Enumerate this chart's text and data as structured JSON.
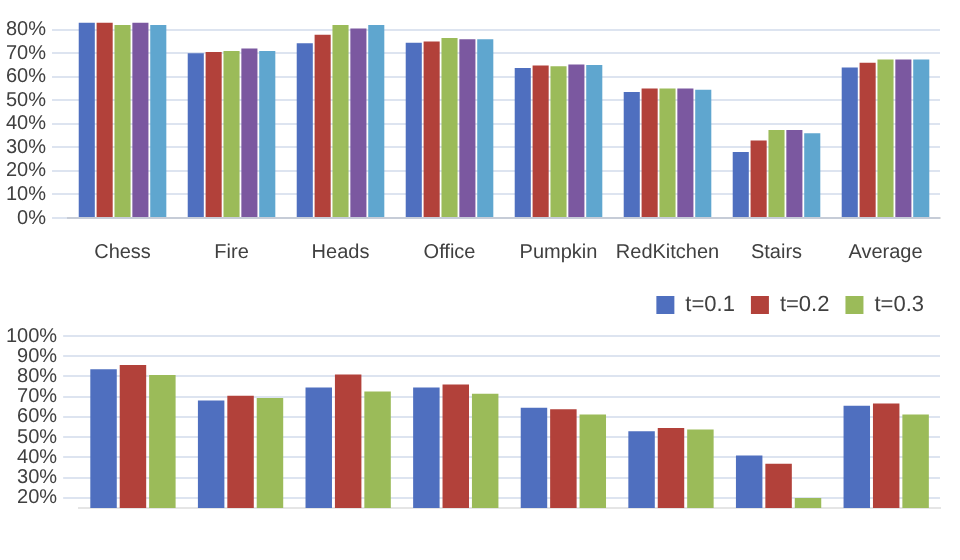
{
  "chart_data": [
    {
      "type": "bar",
      "categories": [
        "Chess",
        "Fire",
        "Heads",
        "Office",
        "Pumpkin",
        "RedKitchen",
        "Stairs",
        "Average"
      ],
      "series": [
        {
          "color": "#4f6fbf",
          "values": [
            83,
            70,
            74.3,
            74.5,
            63.8,
            53.6,
            28.1,
            64
          ]
        },
        {
          "color": "#b2413a",
          "values": [
            83,
            70.5,
            77.9,
            75,
            64.8,
            55,
            32.9,
            66
          ]
        },
        {
          "color": "#9bbb59",
          "values": [
            82,
            71,
            82,
            76.5,
            64.5,
            55,
            37.4,
            67.4
          ]
        },
        {
          "color": "#7b58a0",
          "values": [
            83,
            72,
            80.5,
            76,
            65.2,
            55,
            37.4,
            67.4
          ]
        },
        {
          "color": "#5fa6cf",
          "values": [
            82,
            71,
            82,
            76,
            65,
            54.5,
            36,
            67.4
          ]
        }
      ],
      "ylim": [
        0,
        85
      ],
      "yticks": [
        {
          "value": 0,
          "label": "0%"
        },
        {
          "value": 10,
          "label": "10%"
        },
        {
          "value": 20,
          "label": "20%"
        },
        {
          "value": 30,
          "label": "30%"
        },
        {
          "value": 40,
          "label": "40%"
        },
        {
          "value": 50,
          "label": "50%"
        },
        {
          "value": 60,
          "label": "60%"
        },
        {
          "value": 70,
          "label": "70%"
        },
        {
          "value": 80,
          "label": "80%"
        }
      ],
      "grid": "y",
      "legend": false
    },
    {
      "type": "bar",
      "categories": [
        null,
        null,
        null,
        null,
        null,
        null,
        null,
        null
      ],
      "series": [
        {
          "name": "t=0.1",
          "color": "#4f6fbf",
          "values": [
            83.6,
            68.1,
            74.5,
            74.5,
            64.5,
            52.9,
            41,
            65.5
          ]
        },
        {
          "name": "t=0.2",
          "color": "#b2413a",
          "values": [
            85.7,
            70.5,
            81,
            76,
            63.8,
            54.5,
            36.9,
            66.7
          ]
        },
        {
          "name": "t=0.3",
          "color": "#9bbb59",
          "values": [
            80.7,
            69.3,
            72.6,
            71.4,
            61.2,
            53.8,
            20,
            61.2
          ]
        }
      ],
      "ylim": [
        15,
        100
      ],
      "yticks": [
        {
          "value": 20,
          "label": "20%"
        },
        {
          "value": 30,
          "label": "30%"
        },
        {
          "value": 40,
          "label": "40%"
        },
        {
          "value": 50,
          "label": "50%"
        },
        {
          "value": 60,
          "label": "60%"
        },
        {
          "value": 70,
          "label": "70%"
        },
        {
          "value": 80,
          "label": "80%"
        },
        {
          "value": 90,
          "label": "90%"
        },
        {
          "value": 100,
          "label": "100%"
        }
      ],
      "grid": "y",
      "legend": "top right"
    }
  ]
}
